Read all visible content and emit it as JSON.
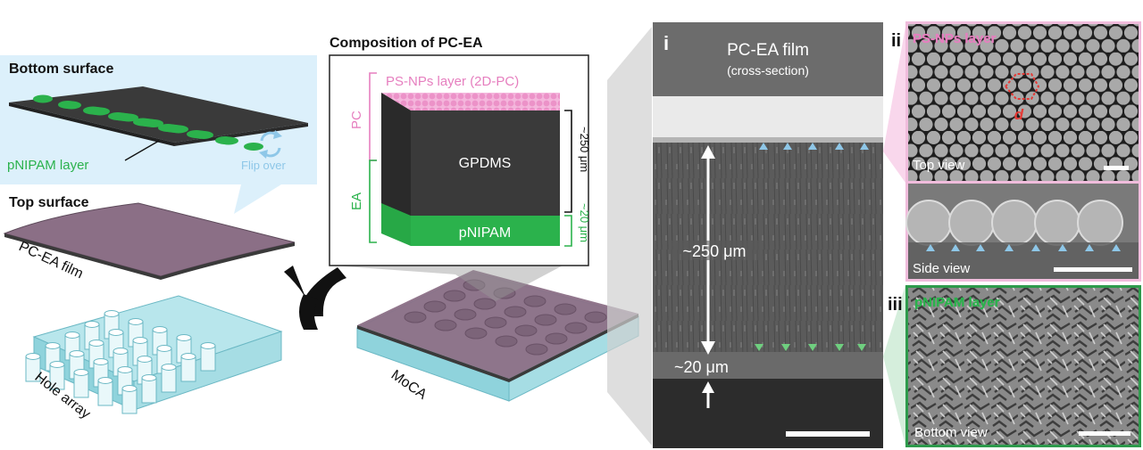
{
  "left": {
    "bottom_surface_title": "Bottom surface",
    "pnipam_layer_label": "pNIPAM layer",
    "flip_over_label": "Flip over",
    "top_surface_title": "Top surface",
    "film_label": "PC-EA film",
    "hole_array_label": "Hole array",
    "moca_label": "MoCA"
  },
  "composition": {
    "title": "Composition of PC-EA",
    "ps_layer_label": "PS-NPs layer (2D-PC)",
    "pc_label": "PC",
    "ea_label": "EA",
    "gpdms_label": "GPDMS",
    "pnipam_label": "pNIPAM",
    "thick_main": "~250 μm",
    "thick_pnipam": "~20 μm"
  },
  "panel_i": {
    "index": "i",
    "title": "PC-EA film",
    "subtitle": "(cross-section)",
    "thick_main": "~250 μm",
    "thick_bottom": "~20 μm"
  },
  "panel_ii": {
    "index": "ii",
    "title": "PS-NPs layer",
    "d_label": "d",
    "top_view": "Top view",
    "side_view": "Side view"
  },
  "panel_iii": {
    "index": "iii",
    "title": "pNIPAM layer",
    "bottom_view": "Bottom view"
  },
  "colors": {
    "green": "#2bb24c",
    "pink": "#e67fbf",
    "film_purple": "#8b6f86",
    "sky": "#dcf0fb",
    "blue_arrow": "#8ec7e8",
    "dark_gray": "#3b3b3b"
  }
}
